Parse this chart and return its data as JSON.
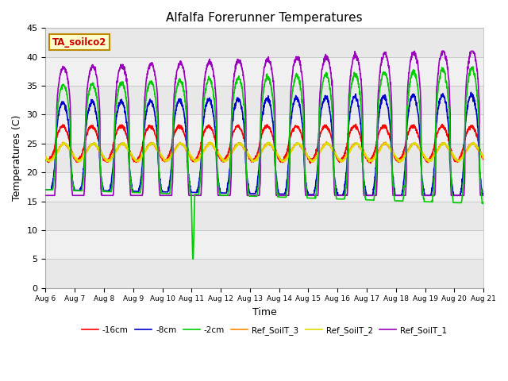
{
  "title": "Alfalfa Forerunner Temperatures",
  "xlabel": "Time",
  "ylabel": "Temperatures (C)",
  "ylim": [
    0,
    45
  ],
  "annotation": "TA_soilco2",
  "legend_labels": [
    "-16cm",
    "-8cm",
    "-2cm",
    "Ref_SoilT_3",
    "Ref_SoilT_2",
    "Ref_SoilT_1"
  ],
  "legend_colors": [
    "#ff0000",
    "#0000cc",
    "#00cc00",
    "#ff8800",
    "#dddd00",
    "#9900bb"
  ],
  "x_tick_labels": [
    "Aug 6",
    "Aug 7",
    "Aug 8",
    "Aug 9",
    "Aug 10",
    "Aug 11",
    "Aug 12",
    "Aug 13",
    "Aug 14",
    "Aug 15",
    "Aug 16",
    "Aug 17",
    "Aug 18",
    "Aug 19",
    "Aug 20",
    "Aug 21"
  ],
  "band_colors": [
    "#e8e8e8",
    "#f0f0f0"
  ],
  "figsize": [
    6.4,
    4.8
  ],
  "dpi": 100
}
